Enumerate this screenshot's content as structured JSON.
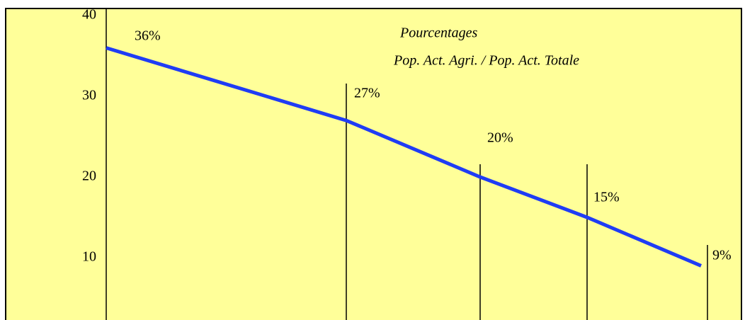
{
  "chart_data": {
    "type": "line",
    "annotations": [
      "Pourcentages",
      "Pop. Act. Agri. / Pop. Act. Totale"
    ],
    "categories": [
      null,
      null,
      null,
      null,
      null
    ],
    "series": [
      {
        "name": null,
        "color": "#1f3cf5",
        "values": [
          36,
          27,
          20,
          15,
          9
        ],
        "value_labels": [
          "36%",
          "27%",
          "20%",
          "15%",
          "9%"
        ]
      }
    ],
    "ylim": [
      0,
      40
    ],
    "yticks": [
      10,
      20,
      30,
      40
    ],
    "background": "#ffff99"
  }
}
